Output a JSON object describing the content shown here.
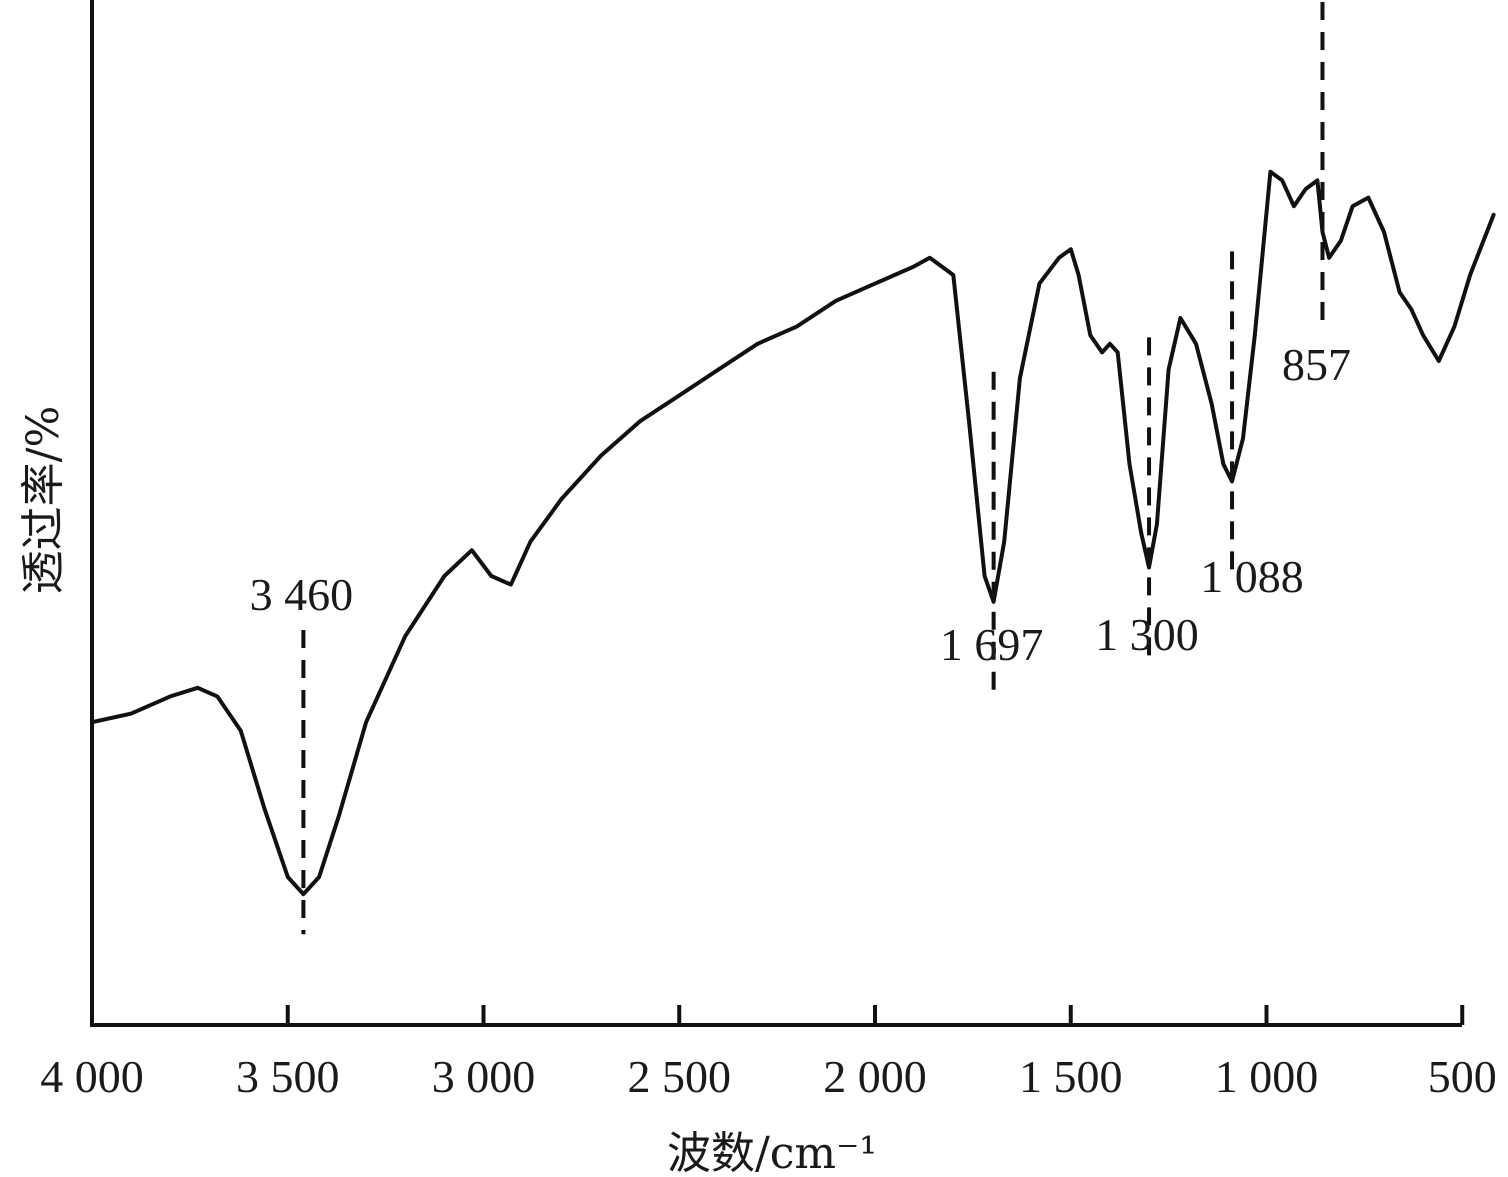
{
  "chart_data": {
    "type": "line",
    "xlabel": "波数/cm⁻¹",
    "ylabel": "透过率/%",
    "xlim": [
      4000,
      400
    ],
    "x_direction": "reversed",
    "y_ticks_shown": false,
    "grid": false,
    "x_ticks": [
      {
        "value": 4000,
        "label": "4 000"
      },
      {
        "value": 3500,
        "label": "3 500"
      },
      {
        "value": 3000,
        "label": "3 000"
      },
      {
        "value": 2500,
        "label": "2 500"
      },
      {
        "value": 2000,
        "label": "2 000"
      },
      {
        "value": 1500,
        "label": "1 500"
      },
      {
        "value": 1000,
        "label": "1 000"
      },
      {
        "value": 500,
        "label": "500"
      }
    ],
    "series": [
      {
        "x": [
          4000,
          3900,
          3800,
          3730,
          3680,
          3620,
          3560,
          3500,
          3460,
          3420,
          3370,
          3300,
          3200,
          3100,
          3030,
          2980,
          2930,
          2880,
          2800,
          2700,
          2600,
          2500,
          2400,
          2300,
          2200,
          2100,
          2000,
          1950,
          1900,
          1860,
          1800,
          1760,
          1720,
          1697,
          1670,
          1630,
          1580,
          1530,
          1500,
          1480,
          1450,
          1420,
          1400,
          1380,
          1350,
          1320,
          1300,
          1280,
          1250,
          1220,
          1180,
          1140,
          1110,
          1088,
          1060,
          1030,
          990,
          960,
          930,
          900,
          870,
          857,
          840,
          810,
          780,
          740,
          700,
          660,
          630,
          600,
          560,
          520,
          480,
          420
        ],
        "y": [
          23,
          24,
          26,
          27,
          26,
          22,
          13,
          5,
          3,
          5,
          12,
          23,
          33,
          40,
          43,
          40,
          39,
          44,
          49,
          54,
          58,
          61,
          64,
          67,
          69,
          72,
          74,
          75,
          76,
          77,
          75,
          58,
          40,
          37,
          44,
          63,
          74,
          77,
          78,
          75,
          68,
          66,
          67,
          66,
          53,
          45,
          41,
          46,
          64,
          70,
          67,
          60,
          53,
          51,
          56,
          68,
          87,
          86,
          83,
          85,
          86,
          80,
          77,
          79,
          83,
          84,
          80,
          73,
          71,
          68,
          65,
          69,
          75,
          82
        ]
      }
    ],
    "annotations": [
      {
        "x": 3460,
        "label": "3 460"
      },
      {
        "x": 1697,
        "label": "1 697"
      },
      {
        "x": 1300,
        "label": "1 300"
      },
      {
        "x": 1088,
        "label": "1 088"
      },
      {
        "x": 857,
        "label": "857"
      }
    ]
  }
}
